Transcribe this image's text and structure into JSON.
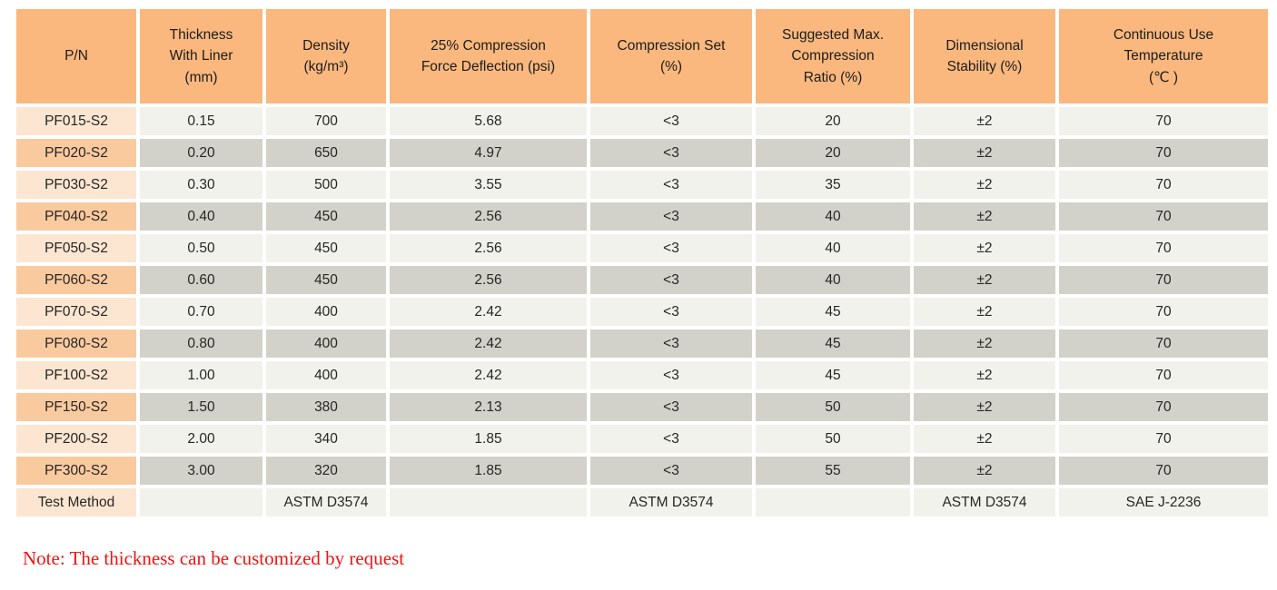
{
  "table": {
    "headers": [
      {
        "label": "P/N"
      },
      {
        "label": "Thickness\nWith Liner\n(mm)"
      },
      {
        "label": "Density\n(kg/m³)"
      },
      {
        "label": "25% Compression\nForce Deflection (psi)"
      },
      {
        "label": "Compression Set\n(%)"
      },
      {
        "label": "Suggested Max.\nCompression\nRatio (%)"
      },
      {
        "label": "Dimensional\nStability (%)"
      },
      {
        "label": "Continuous Use\nTemperature\n(℃ )"
      }
    ],
    "rows": [
      [
        "PF015-S2",
        "0.15",
        "700",
        "5.68",
        "<3",
        "20",
        "±2",
        "70"
      ],
      [
        "PF020-S2",
        "0.20",
        "650",
        "4.97",
        "<3",
        "20",
        "±2",
        "70"
      ],
      [
        "PF030-S2",
        "0.30",
        "500",
        "3.55",
        "<3",
        "35",
        "±2",
        "70"
      ],
      [
        "PF040-S2",
        "0.40",
        "450",
        "2.56",
        "<3",
        "40",
        "±2",
        "70"
      ],
      [
        "PF050-S2",
        "0.50",
        "450",
        "2.56",
        "<3",
        "40",
        "±2",
        "70"
      ],
      [
        "PF060-S2",
        "0.60",
        "450",
        "2.56",
        "<3",
        "40",
        "±2",
        "70"
      ],
      [
        "PF070-S2",
        "0.70",
        "400",
        "2.42",
        "<3",
        "45",
        "±2",
        "70"
      ],
      [
        "PF080-S2",
        "0.80",
        "400",
        "2.42",
        "<3",
        "45",
        "±2",
        "70"
      ],
      [
        "PF100-S2",
        "1.00",
        "400",
        "2.42",
        "<3",
        "45",
        "±2",
        "70"
      ],
      [
        "PF150-S2",
        "1.50",
        "380",
        "2.13",
        "<3",
        "50",
        "±2",
        "70"
      ],
      [
        "PF200-S2",
        "2.00",
        "340",
        "1.85",
        "<3",
        "50",
        "±2",
        "70"
      ],
      [
        "PF300-S2",
        "3.00",
        "320",
        "1.85",
        "<3",
        "55",
        "±2",
        "70"
      ],
      [
        "Test Method",
        "",
        "ASTM D3574",
        "",
        "ASTM D3574",
        "",
        "ASTM D3574",
        "SAE J-2236"
      ]
    ]
  },
  "note": "Note: The thickness can be customized by request",
  "colors": {
    "header_bg": "#FAB87E",
    "pn_cell_light": "#FCE6D1",
    "pn_cell_dark": "#FACA9F",
    "value_cell_light": "#F2F2ED",
    "value_cell_dark": "#D2D2CA",
    "note_text": "#EE1512"
  }
}
